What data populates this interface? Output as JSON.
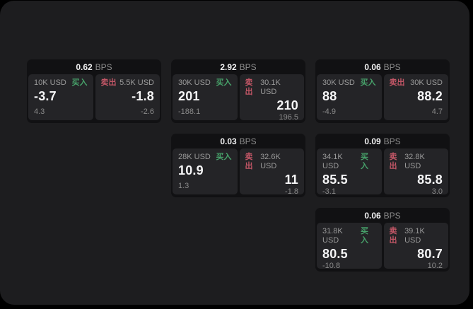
{
  "ui": {
    "bps_unit": "BPS",
    "buy_label": "买入",
    "sell_label": "卖出"
  },
  "colors": {
    "page_background": "#000000",
    "surface": "#1d1d1f",
    "card": "#111113",
    "tile": "#242427",
    "buy_green": "#47a16a",
    "sell_red": "#c25666",
    "text_primary": "#f5f5f6",
    "text_muted": "#9a9a9a"
  },
  "cards": [
    {
      "bps": "0.62",
      "buy": {
        "amount": "10K USD",
        "value": "-3.7",
        "delta": "4.3"
      },
      "sell": {
        "amount": "5.5K USD",
        "value": "-1.8",
        "delta": "-2.6"
      }
    },
    {
      "bps": "2.92",
      "buy": {
        "amount": "30K USD",
        "value": "201",
        "delta": "-188.1"
      },
      "sell": {
        "amount": "30.1K USD",
        "value": "210",
        "delta": "196.5"
      }
    },
    {
      "bps": "0.06",
      "buy": {
        "amount": "30K USD",
        "value": "88",
        "delta": "-4.9"
      },
      "sell": {
        "amount": "30K USD",
        "value": "88.2",
        "delta": "4.7"
      }
    },
    {
      "bps": "0.03",
      "buy": {
        "amount": "28K USD",
        "value": "10.9",
        "delta": "1.3"
      },
      "sell": {
        "amount": "32.6K USD",
        "value": "11",
        "delta": "-1.8"
      }
    },
    {
      "bps": "0.09",
      "buy": {
        "amount": "34.1K USD",
        "value": "85.5",
        "delta": "-3.1"
      },
      "sell": {
        "amount": "32.8K USD",
        "value": "85.8",
        "delta": "3.0"
      }
    },
    {
      "bps": "0.06",
      "buy": {
        "amount": "31.8K USD",
        "value": "80.5",
        "delta": "-10.8"
      },
      "sell": {
        "amount": "39.1K USD",
        "value": "80.7",
        "delta": "10.2"
      }
    }
  ]
}
